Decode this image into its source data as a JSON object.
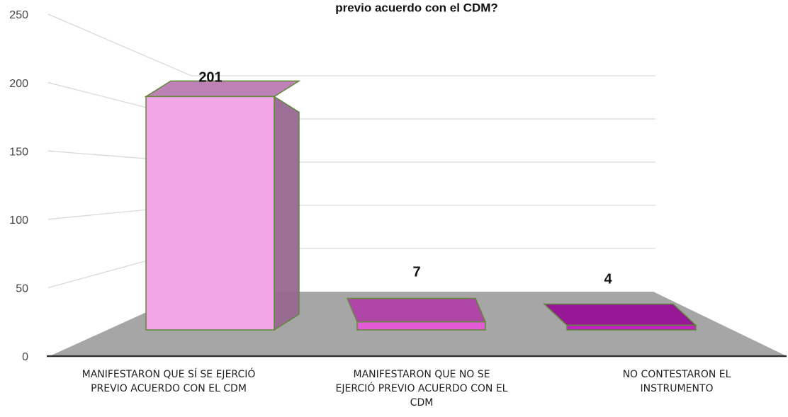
{
  "chart_data": {
    "type": "bar3d",
    "title": "previo acuerdo con el CDM?",
    "categories": [
      "MANIFESTARON QUE SÍ SE EJERCIÓ PREVIO ACUERDO CON EL CDM",
      "MANIFESTARON QUE NO SE EJERCIÓ PREVIO ACUERDO CON EL CDM",
      "NO CONTESTARON EL INSTRUMENTO"
    ],
    "values": [
      201,
      7,
      4
    ],
    "colors": [
      "#f2a6e8",
      "#e25ad6",
      "#c21fc2"
    ],
    "ylim": [
      0,
      250
    ],
    "yticks": [
      0,
      50,
      100,
      150,
      200,
      250
    ],
    "grid": true
  }
}
